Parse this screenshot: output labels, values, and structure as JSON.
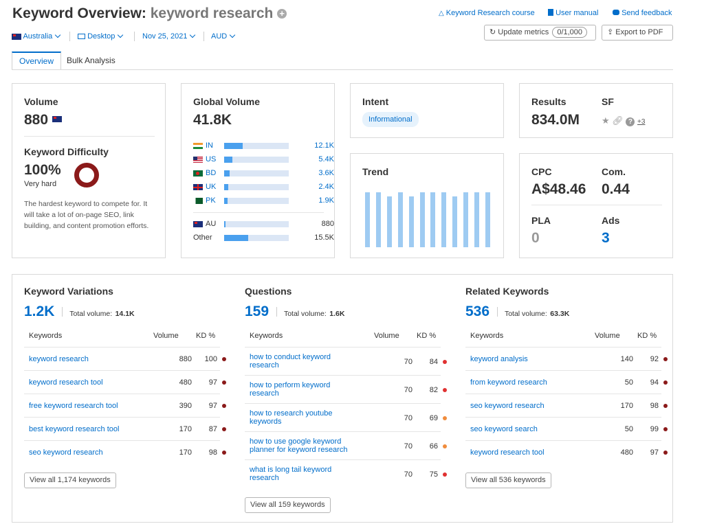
{
  "header": {
    "title_prefix": "Keyword Overview:",
    "title_keyword": "keyword research",
    "links": {
      "course": "Keyword Research course",
      "manual": "User manual",
      "feedback": "Send feedback"
    },
    "update_metrics": "Update metrics",
    "update_counter": "0/1,000",
    "export_pdf": "Export to PDF"
  },
  "filters": {
    "country": "Australia",
    "device": "Desktop",
    "date": "Nov 25, 2021",
    "currency": "AUD"
  },
  "tabs": [
    {
      "label": "Overview",
      "active": true
    },
    {
      "label": "Bulk Analysis",
      "active": false
    }
  ],
  "volume_card": {
    "title": "Volume",
    "value": "880",
    "kd_title": "Keyword Difficulty",
    "kd_value": "100%",
    "kd_level": "Very hard",
    "kd_description": "The hardest keyword to compete for. It will take a lot of on-page SEO, link building, and content promotion efforts.",
    "kd_color": "#8b1a1a"
  },
  "global_volume": {
    "title": "Global Volume",
    "value": "41.8K",
    "countries": [
      {
        "code": "IN",
        "flag": "india-flag",
        "value": "12.1K",
        "share": 0.29
      },
      {
        "code": "US",
        "flag": "us-flag",
        "value": "5.4K",
        "share": 0.13
      },
      {
        "code": "BD",
        "flag": "bangladesh-flag",
        "value": "3.6K",
        "share": 0.09
      },
      {
        "code": "UK",
        "flag": "uk-flag",
        "value": "2.4K",
        "share": 0.06
      },
      {
        "code": "PK",
        "flag": "pakistan-flag",
        "value": "1.9K",
        "share": 0.05
      }
    ],
    "au": {
      "code": "AU",
      "value": "880",
      "share": 0.02
    },
    "other": {
      "label": "Other",
      "value": "15.5K",
      "share": 0.37
    }
  },
  "intent": {
    "title": "Intent",
    "badge": "Informational"
  },
  "trend": {
    "title": "Trend",
    "values": [
      1.0,
      1.0,
      0.92,
      1.0,
      0.92,
      1.0,
      1.0,
      1.0,
      0.92,
      1.0,
      1.0,
      1.0
    ]
  },
  "results": {
    "title": "Results",
    "value": "834.0M",
    "sf_title": "SF",
    "sf_more": "+3"
  },
  "cpc": {
    "cpc_title": "CPC",
    "cpc_value": "A$48.46",
    "com_title": "Com.",
    "com_value": "0.44",
    "pla_title": "PLA",
    "pla_value": "0",
    "ads_title": "Ads",
    "ads_value": "3"
  },
  "variations": {
    "title": "Keyword Variations",
    "count": "1.2K",
    "total_label": "Total volume:",
    "total_value": "14.1K",
    "col_keywords": "Keywords",
    "col_volume": "Volume",
    "col_kd": "KD %",
    "rows": [
      {
        "keyword": "keyword research",
        "volume": "880",
        "kd": "100",
        "color": "#8b1a1a"
      },
      {
        "keyword": "keyword research tool",
        "volume": "480",
        "kd": "97",
        "color": "#8b1a1a"
      },
      {
        "keyword": "free keyword research tool",
        "volume": "390",
        "kd": "97",
        "color": "#8b1a1a"
      },
      {
        "keyword": "best keyword research tool",
        "volume": "170",
        "kd": "87",
        "color": "#8b1a1a"
      },
      {
        "keyword": "seo keyword research",
        "volume": "170",
        "kd": "98",
        "color": "#8b1a1a"
      }
    ],
    "view_all": "View all 1,174 keywords"
  },
  "questions": {
    "title": "Questions",
    "count": "159",
    "total_label": "Total volume:",
    "total_value": "1.6K",
    "col_keywords": "Keywords",
    "col_volume": "Volume",
    "col_kd": "KD %",
    "rows": [
      {
        "line1": "how to conduct keyword",
        "line2": "research",
        "volume": "70",
        "kd": "84",
        "color": "#e03131"
      },
      {
        "line1": "how to perform keyword",
        "line2": "research",
        "volume": "70",
        "kd": "82",
        "color": "#e03131"
      },
      {
        "line1": "how to research youtube",
        "line2": "keywords",
        "volume": "70",
        "kd": "69",
        "color": "#f08c3c"
      },
      {
        "line1": "how to use google keyword",
        "line2": "planner for keyword research",
        "volume": "70",
        "kd": "66",
        "color": "#f08c3c"
      },
      {
        "line1": "what is long tail keyword",
        "line2": "research",
        "volume": "70",
        "kd": "75",
        "color": "#e03131"
      }
    ],
    "view_all": "View all 159 keywords"
  },
  "related": {
    "title": "Related Keywords",
    "count": "536",
    "total_label": "Total volume:",
    "total_value": "63.3K",
    "col_keywords": "Keywords",
    "col_volume": "Volume",
    "col_kd": "KD %",
    "rows": [
      {
        "keyword": "keyword analysis",
        "volume": "140",
        "kd": "92",
        "color": "#8b1a1a"
      },
      {
        "keyword": "from keyword research",
        "volume": "50",
        "kd": "94",
        "color": "#8b1a1a"
      },
      {
        "keyword": "seo keyword research",
        "volume": "170",
        "kd": "98",
        "color": "#8b1a1a"
      },
      {
        "keyword": "seo keyword search",
        "volume": "50",
        "kd": "99",
        "color": "#8b1a1a"
      },
      {
        "keyword": "keyword research tool",
        "volume": "480",
        "kd": "97",
        "color": "#8b1a1a"
      }
    ],
    "view_all": "View all 536 keywords"
  }
}
